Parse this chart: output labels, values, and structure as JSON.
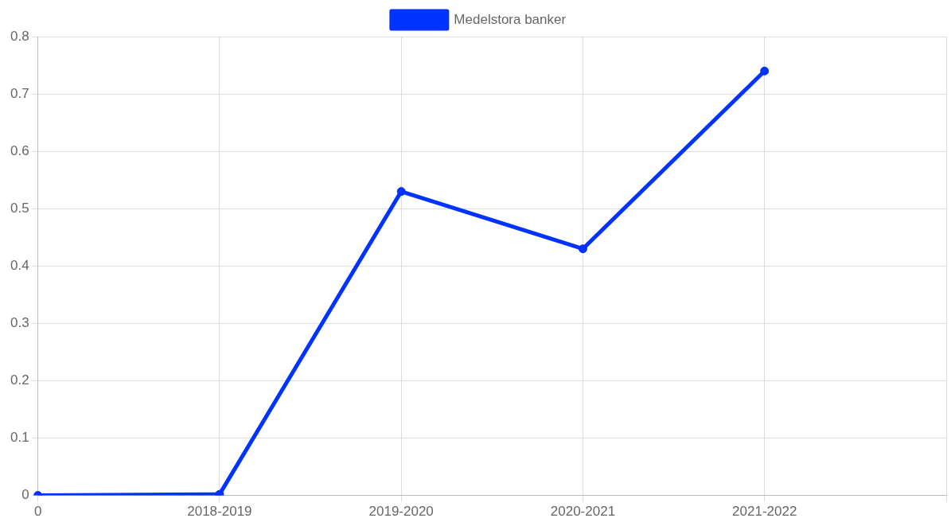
{
  "chart_data": {
    "type": "line",
    "categories": [
      "0",
      "2018-2019",
      "2019-2020",
      "2020-2021",
      "2021-2022",
      null
    ],
    "series": [
      {
        "name": "Medelstora banker",
        "color": "#0033ff",
        "values": [
          0,
          0.002,
          0.53,
          0.43,
          0.74,
          null
        ]
      }
    ],
    "ylim": [
      0,
      0.8
    ],
    "yticks": [
      0,
      0.1,
      0.2,
      0.3,
      0.4,
      0.5,
      0.6,
      0.7,
      0.8
    ],
    "grid": true,
    "legend": "top",
    "marker": "circle",
    "line_style": "solid"
  }
}
